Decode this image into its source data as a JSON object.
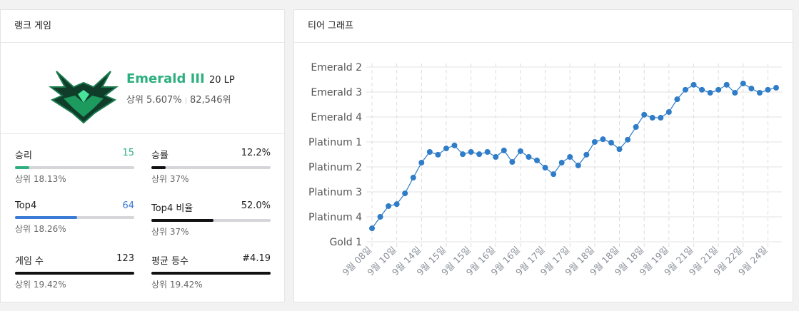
{
  "rank_panel": {
    "title": "랭크 게임",
    "tier": "Emerald III",
    "lp": "20 LP",
    "top_percent": "상위 5.607%",
    "rank": "82,546위",
    "stats": [
      {
        "label": "승리",
        "value": "15",
        "value_color": "#2daf7f",
        "bar": 12.2,
        "bar_color": "#2daf7f",
        "sub": "상위 18.13%"
      },
      {
        "label": "승률",
        "value": "12.2%",
        "value_color": "#222222",
        "bar": 12.2,
        "bar_color": "#111111",
        "sub": "상위 37%"
      },
      {
        "label": "Top4",
        "value": "64",
        "value_color": "#3a7bd5",
        "bar": 52,
        "bar_color": "#3a7bd5",
        "sub": "상위 18.26%"
      },
      {
        "label": "Top4 비율",
        "value": "52.0%",
        "value_color": "#222222",
        "bar": 52,
        "bar_color": "#111111",
        "sub": "상위 37%"
      },
      {
        "label": "게임 수",
        "value": "123",
        "value_color": "#222222",
        "bar": 100,
        "bar_color": "#111111",
        "sub": "상위 19.42%"
      },
      {
        "label": "평균 등수",
        "value": "#4.19",
        "value_color": "#222222",
        "bar": 100,
        "bar_color": "#111111",
        "sub": "상위 19.42%"
      }
    ]
  },
  "chart_data": {
    "type": "line",
    "title": "티어 그래프",
    "color": "#2f7cc8",
    "grid": true,
    "categories": [
      "9월 08일",
      null,
      null,
      "9월 10일",
      null,
      null,
      "9월 14일",
      null,
      null,
      "9월 15일",
      null,
      null,
      "9월 15일",
      null,
      null,
      "9월 16일",
      null,
      null,
      "9월 16일",
      null,
      null,
      "9월 17일",
      null,
      null,
      "9월 17일",
      null,
      null,
      "9월 18일",
      null,
      null,
      "9월 18일",
      null,
      null,
      "9월 18일",
      null,
      null,
      "9월 19일",
      null,
      null,
      "9월 21일",
      null,
      null,
      "9월 21일",
      null,
      null,
      "9월 22일",
      null,
      null,
      "9월 24일",
      null
    ],
    "values": [
      0.54,
      1.0,
      1.43,
      1.51,
      1.94,
      2.57,
      3.17,
      3.6,
      3.49,
      3.74,
      3.86,
      3.51,
      3.6,
      3.51,
      3.6,
      3.4,
      3.66,
      3.2,
      3.63,
      3.4,
      3.26,
      2.97,
      2.71,
      3.17,
      3.4,
      3.06,
      3.49,
      4.0,
      4.11,
      3.97,
      3.71,
      4.09,
      4.6,
      5.09,
      4.97,
      4.97,
      5.2,
      5.71,
      6.09,
      6.29,
      6.09,
      5.97,
      6.09,
      6.29,
      5.97,
      6.34,
      6.14,
      5.97,
      6.09,
      6.17
    ],
    "ylim": [
      0,
      7
    ],
    "yticks": [
      {
        "value": 0,
        "label": "Gold 1"
      },
      {
        "value": 1,
        "label": "Platinum 4"
      },
      {
        "value": 2,
        "label": "Platinum 3"
      },
      {
        "value": 3,
        "label": "Platinum 2"
      },
      {
        "value": 4,
        "label": "Platinum 1"
      },
      {
        "value": 5,
        "label": "Emerald 4"
      },
      {
        "value": 6,
        "label": "Emerald 3"
      },
      {
        "value": 7,
        "label": "Emerald 2"
      }
    ]
  }
}
